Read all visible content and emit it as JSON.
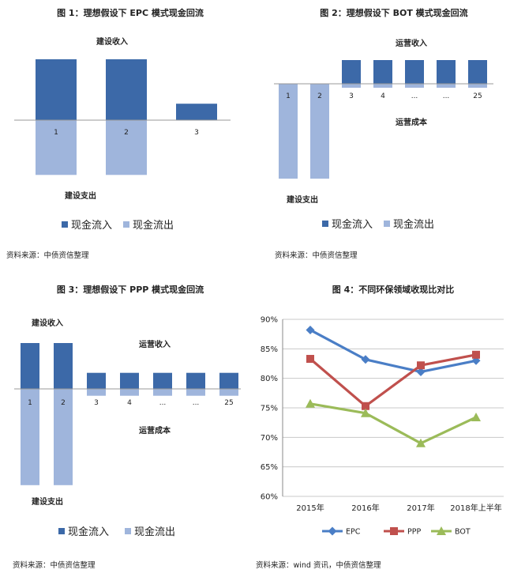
{
  "colors": {
    "inflow": "#4472c4",
    "inflow_dark": "#3c69a8",
    "outflow": "#9fb5dc",
    "epc": "#4a7ec6",
    "ppp": "#c0504d",
    "bot": "#9bbb59"
  },
  "fig1": {
    "title": "图 1：理想假设下 EPC 模式现金回流",
    "label_top": "建设收入",
    "label_bottom": "建设支出",
    "legend": [
      "现金流入",
      "现金流出"
    ],
    "source": "资料来源：中债资信整理",
    "chart_data": {
      "type": "bar",
      "categories": [
        "1",
        "2",
        "3"
      ],
      "series": [
        {
          "values": [
            1.0,
            1.0,
            0.27
          ]
        },
        {
          "values": [
            -0.9,
            -0.9,
            0
          ]
        }
      ]
    }
  },
  "fig2": {
    "title": "图 2：理想假设下 BOT 模式现金回流",
    "label_top": "运营收入",
    "label_mid": "运营成本",
    "label_bottom": "建设支出",
    "legend": [
      "现金流入",
      "现金流出"
    ],
    "source": "资料来源：中债资信整理",
    "chart_data": {
      "type": "bar",
      "categories": [
        "1",
        "2",
        "3",
        "4",
        "...",
        "...",
        "25"
      ],
      "series": [
        {
          "values": [
            0,
            0,
            0.3,
            0.3,
            0.3,
            0.3,
            0.3
          ]
        },
        {
          "values": [
            -1.2,
            -1.2,
            -0.05,
            -0.05,
            -0.05,
            -0.05,
            -0.05
          ]
        }
      ]
    }
  },
  "fig3": {
    "title": "图 3：理想假设下 PPP 模式现金回流",
    "label_top": "建设收入",
    "label_op_in": "运营收入",
    "label_op_cost": "运营成本",
    "label_bottom": "建设支出",
    "legend": [
      "现金流入",
      "现金流出"
    ],
    "source": "资料来源：中债资信整理",
    "chart_data": {
      "type": "bar",
      "categories": [
        "1",
        "2",
        "3",
        "4",
        "...",
        "...",
        "25"
      ],
      "series": [
        {
          "values": [
            1.0,
            1.0,
            0.35,
            0.35,
            0.35,
            0.35,
            0.35
          ]
        },
        {
          "values": [
            -2.1,
            -2.1,
            -0.15,
            -0.15,
            -0.15,
            -0.15,
            -0.15
          ]
        }
      ]
    }
  },
  "fig4": {
    "title": "图 4：不同环保领域收现比对比",
    "source": "资料来源：wind 资讯，中债资信整理",
    "chart_data": {
      "type": "line",
      "categories": [
        "2015年",
        "2016年",
        "2017年",
        "2018年上半年"
      ],
      "ylim": [
        60,
        90
      ],
      "yticks": [
        "60%",
        "65%",
        "70%",
        "75%",
        "80%",
        "85%",
        "90%"
      ],
      "series": [
        {
          "name": "EPC",
          "values": [
            88.2,
            83.2,
            81.1,
            83.0
          ]
        },
        {
          "name": "PPP",
          "values": [
            83.3,
            75.3,
            82.2,
            84.0
          ]
        },
        {
          "name": "BOT",
          "values": [
            75.7,
            74.1,
            69.0,
            73.4
          ]
        }
      ]
    }
  }
}
